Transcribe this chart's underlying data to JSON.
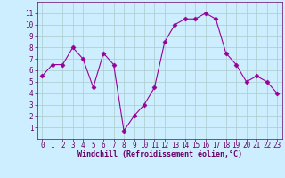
{
  "x": [
    0,
    1,
    2,
    3,
    4,
    5,
    6,
    7,
    8,
    9,
    10,
    11,
    12,
    13,
    14,
    15,
    16,
    17,
    18,
    19,
    20,
    21,
    22,
    23
  ],
  "y": [
    5.5,
    6.5,
    6.5,
    8.0,
    7.0,
    4.5,
    7.5,
    6.5,
    0.7,
    2.0,
    3.0,
    4.5,
    8.5,
    10.0,
    10.5,
    10.5,
    11.0,
    10.5,
    7.5,
    6.5,
    5.0,
    5.5,
    5.0,
    4.0
  ],
  "line_color": "#990099",
  "marker": "D",
  "marker_size": 2.5,
  "bg_color": "#cceeff",
  "grid_color": "#aacccc",
  "xlabel": "Windchill (Refroidissement éolien,°C)",
  "xlabel_color": "#660066",
  "tick_color": "#660066",
  "ylim": [
    0,
    12
  ],
  "xlim": [
    -0.5,
    23.5
  ],
  "yticks": [
    1,
    2,
    3,
    4,
    5,
    6,
    7,
    8,
    9,
    10,
    11
  ],
  "xticks": [
    0,
    1,
    2,
    3,
    4,
    5,
    6,
    7,
    8,
    9,
    10,
    11,
    12,
    13,
    14,
    15,
    16,
    17,
    18,
    19,
    20,
    21,
    22,
    23
  ],
  "label_fontsize": 6.0,
  "tick_fontsize": 5.5
}
